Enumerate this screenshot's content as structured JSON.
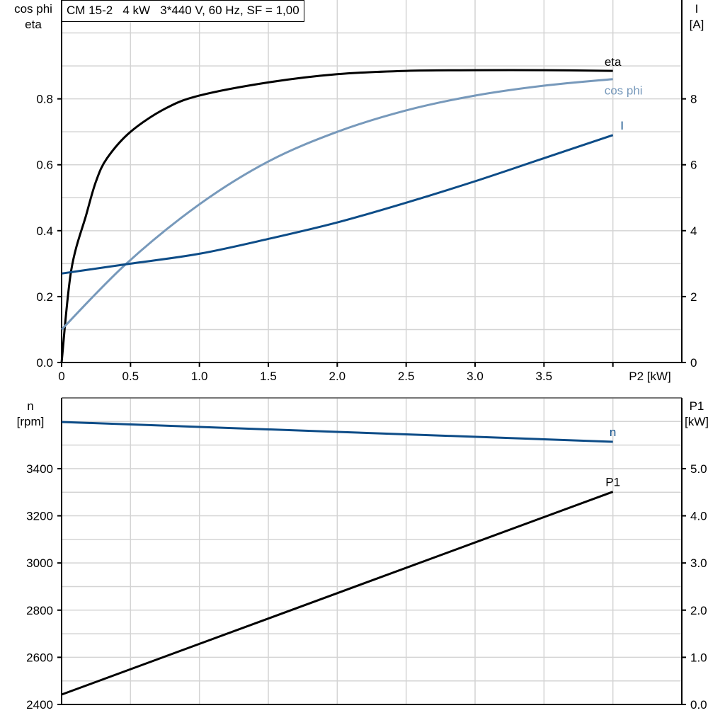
{
  "title": "CM 15-2   4 kW   3*440 V, 60 Hz, SF = 1,00",
  "chart_data": [
    {
      "type": "line",
      "xlabel": "P2 [kW]",
      "xlim": [
        0,
        4.5
      ],
      "x_ticks": [
        "0",
        "0.5",
        "1.0",
        "1.5",
        "2.0",
        "2.5",
        "3.0",
        "3.5"
      ],
      "ylabel_left": [
        "cos phi",
        "eta"
      ],
      "ylim_left": [
        0,
        1.1
      ],
      "y_ticks_left": [
        "0.0",
        "0.2",
        "0.4",
        "0.6",
        "0.8"
      ],
      "ylabel_right": [
        "I",
        "[A]"
      ],
      "ylim_right": [
        0,
        11
      ],
      "y_ticks_right": [
        "0",
        "2",
        "4",
        "6",
        "8"
      ],
      "grid": true,
      "series": [
        {
          "name": "eta",
          "axis": "left",
          "color": "#000000",
          "x": [
            0,
            0.07,
            0.18,
            0.25,
            0.33,
            0.5,
            0.75,
            1.0,
            1.5,
            2.0,
            2.5,
            3.0,
            3.5,
            4.0
          ],
          "y": [
            0,
            0.28,
            0.45,
            0.55,
            0.62,
            0.7,
            0.77,
            0.81,
            0.85,
            0.875,
            0.885,
            0.887,
            0.887,
            0.885
          ]
        },
        {
          "name": "cos phi",
          "axis": "left",
          "color": "#7799bb",
          "x": [
            0,
            0.47,
            1.0,
            1.5,
            2.0,
            2.5,
            3.0,
            3.5,
            4.0
          ],
          "y": [
            0.1,
            0.3,
            0.48,
            0.61,
            0.7,
            0.765,
            0.81,
            0.84,
            0.86
          ]
        },
        {
          "name": "I",
          "axis": "right",
          "color": "#0d4c87",
          "x": [
            0,
            0.5,
            1.0,
            1.5,
            2.0,
            2.5,
            3.0,
            3.5,
            4.0
          ],
          "y": [
            2.7,
            3.0,
            3.3,
            3.75,
            4.25,
            4.85,
            5.5,
            6.2,
            6.9
          ]
        }
      ]
    },
    {
      "type": "line",
      "xlim": [
        0,
        4.5
      ],
      "ylabel_left": [
        "n",
        "[rpm]"
      ],
      "ylim_left": [
        2400,
        3700
      ],
      "y_ticks_left": [
        "2400",
        "2600",
        "2800",
        "3000",
        "3200",
        "3400"
      ],
      "ylabel_right": [
        "P1",
        "[kW]"
      ],
      "ylim_right": [
        0,
        6.5
      ],
      "y_ticks_right": [
        "0.0",
        "1.0",
        "2.0",
        "3.0",
        "4.0",
        "5.0"
      ],
      "grid": true,
      "series": [
        {
          "name": "n",
          "axis": "left",
          "color": "#0d4c87",
          "x": [
            0,
            4.0
          ],
          "y": [
            3598,
            3514
          ]
        },
        {
          "name": "P1",
          "axis": "right",
          "color": "#000000",
          "x": [
            0,
            4.0
          ],
          "y": [
            0.21,
            4.51
          ]
        }
      ]
    }
  ]
}
